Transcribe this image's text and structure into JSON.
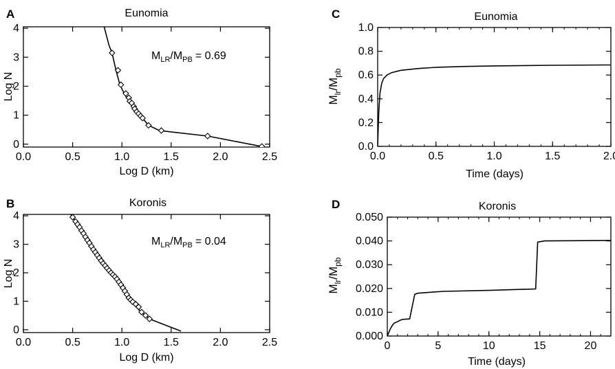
{
  "chart_data": [
    {
      "panel": "A",
      "type": "line",
      "title": "Eunomia",
      "xlabel": "Log D (km)",
      "ylabel": "Log N",
      "xlim": [
        0.0,
        2.5
      ],
      "ylim": [
        -0.1,
        4.05
      ],
      "xticks": [
        "0.0",
        "0.5",
        "1.0",
        "1.5",
        "2.0",
        "2.5"
      ],
      "yticks": [
        "0",
        "1",
        "2",
        "3",
        "4"
      ],
      "annotation": {
        "text_main": "M",
        "sub1": "LR",
        "sep": "/M",
        "sub2": "PB",
        "value": "=  0.69"
      },
      "line": [
        [
          0.82,
          4.05
        ],
        [
          0.87,
          3.4
        ],
        [
          0.9,
          3.15
        ],
        [
          0.94,
          2.55
        ],
        [
          0.98,
          2.05
        ],
        [
          1.03,
          1.7
        ],
        [
          1.08,
          1.45
        ],
        [
          1.13,
          1.22
        ],
        [
          1.18,
          1.02
        ],
        [
          1.27,
          0.65
        ],
        [
          1.38,
          0.47
        ],
        [
          1.87,
          0.28
        ],
        [
          2.42,
          -0.08
        ]
      ],
      "markers": [
        [
          0.9,
          3.15
        ],
        [
          0.96,
          2.55
        ],
        [
          0.99,
          2.05
        ],
        [
          1.04,
          1.75
        ],
        [
          1.07,
          1.6
        ],
        [
          1.08,
          1.48
        ],
        [
          1.1,
          1.42
        ],
        [
          1.12,
          1.3
        ],
        [
          1.13,
          1.22
        ],
        [
          1.15,
          1.12
        ],
        [
          1.17,
          1.05
        ],
        [
          1.19,
          0.97
        ],
        [
          1.21,
          0.9
        ],
        [
          1.27,
          0.65
        ],
        [
          1.4,
          0.47
        ],
        [
          1.87,
          0.28
        ],
        [
          2.42,
          -0.08
        ]
      ]
    },
    {
      "panel": "B",
      "type": "line",
      "title": "Koronis",
      "xlabel": "Log D (km)",
      "ylabel": "Log N",
      "xlim": [
        0.0,
        2.5
      ],
      "ylim": [
        -0.1,
        4.05
      ],
      "xticks": [
        "0.0",
        "0.5",
        "1.0",
        "1.5",
        "2.0",
        "2.5"
      ],
      "yticks": [
        "0",
        "1",
        "2",
        "3",
        "4"
      ],
      "annotation": {
        "text_main": "M",
        "sub1": "LR",
        "sep": "/M",
        "sub2": "PB",
        "value": "=  0.04"
      },
      "line": [
        [
          0.48,
          4.05
        ],
        [
          0.55,
          3.7
        ],
        [
          0.62,
          3.3
        ],
        [
          0.7,
          2.85
        ],
        [
          0.78,
          2.45
        ],
        [
          0.86,
          2.1
        ],
        [
          0.94,
          1.8
        ],
        [
          1.0,
          1.5
        ],
        [
          1.06,
          1.15
        ],
        [
          1.12,
          0.9
        ],
        [
          1.2,
          0.6
        ],
        [
          1.3,
          0.35
        ],
        [
          1.45,
          0.15
        ],
        [
          1.6,
          -0.05
        ]
      ],
      "markers": [
        [
          0.5,
          3.95
        ],
        [
          0.53,
          3.8
        ],
        [
          0.55,
          3.7
        ],
        [
          0.57,
          3.6
        ],
        [
          0.59,
          3.48
        ],
        [
          0.61,
          3.38
        ],
        [
          0.63,
          3.26
        ],
        [
          0.65,
          3.15
        ],
        [
          0.67,
          3.05
        ],
        [
          0.69,
          2.93
        ],
        [
          0.71,
          2.82
        ],
        [
          0.73,
          2.72
        ],
        [
          0.75,
          2.62
        ],
        [
          0.77,
          2.52
        ],
        [
          0.79,
          2.42
        ],
        [
          0.81,
          2.33
        ],
        [
          0.83,
          2.25
        ],
        [
          0.85,
          2.16
        ],
        [
          0.87,
          2.08
        ],
        [
          0.89,
          2.0
        ],
        [
          0.91,
          1.93
        ],
        [
          0.93,
          1.86
        ],
        [
          0.95,
          1.78
        ],
        [
          0.97,
          1.68
        ],
        [
          0.99,
          1.58
        ],
        [
          1.01,
          1.47
        ],
        [
          1.03,
          1.36
        ],
        [
          1.05,
          1.24
        ],
        [
          1.07,
          1.12
        ],
        [
          1.09,
          1.05
        ],
        [
          1.11,
          0.98
        ],
        [
          1.14,
          0.9
        ],
        [
          1.17,
          0.8
        ],
        [
          1.2,
          0.62
        ],
        [
          1.24,
          0.5
        ],
        [
          1.28,
          0.38
        ]
      ]
    },
    {
      "panel": "C",
      "type": "line",
      "title": "Eunomia",
      "xlabel": "Time (days)",
      "ylabel_main": "M",
      "ylabel_sub1": "lr",
      "ylabel_sep": "/M",
      "ylabel_sub2": "pb",
      "xlim": [
        0.0,
        2.0
      ],
      "ylim": [
        0.0,
        1.0
      ],
      "xticks": [
        "0.0",
        "0.5",
        "1.0",
        "1.5",
        "2.0"
      ],
      "yticks": [
        "0.0",
        "0.2",
        "0.4",
        "0.6",
        "0.8",
        "1.0"
      ],
      "line": [
        [
          0.0,
          0.0
        ],
        [
          0.005,
          0.15
        ],
        [
          0.01,
          0.3
        ],
        [
          0.02,
          0.45
        ],
        [
          0.035,
          0.53
        ],
        [
          0.05,
          0.57
        ],
        [
          0.08,
          0.6
        ],
        [
          0.12,
          0.62
        ],
        [
          0.2,
          0.64
        ],
        [
          0.35,
          0.655
        ],
        [
          0.5,
          0.665
        ],
        [
          0.75,
          0.672
        ],
        [
          1.0,
          0.677
        ],
        [
          1.5,
          0.682
        ],
        [
          2.0,
          0.685
        ]
      ]
    },
    {
      "panel": "D",
      "type": "line",
      "title": "Koronis",
      "xlabel": "Time (days)",
      "ylabel_main": "M",
      "ylabel_sub1": "lr",
      "ylabel_sep": "/M",
      "ylabel_sub2": "pb",
      "xlim": [
        0,
        22
      ],
      "ylim": [
        0.0,
        0.05
      ],
      "xticks": [
        "0",
        "5",
        "10",
        "15",
        "20"
      ],
      "yticks": [
        "0.000",
        "0.010",
        "0.020",
        "0.030",
        "0.040",
        "0.050"
      ],
      "line": [
        [
          0,
          0
        ],
        [
          0.1,
          0.001
        ],
        [
          0.3,
          0.003
        ],
        [
          0.5,
          0.0045
        ],
        [
          0.7,
          0.0055
        ],
        [
          1.0,
          0.006
        ],
        [
          1.2,
          0.0065
        ],
        [
          1.5,
          0.007
        ],
        [
          2.2,
          0.0072
        ],
        [
          2.7,
          0.0175
        ],
        [
          3.0,
          0.018
        ],
        [
          5.5,
          0.0188
        ],
        [
          10,
          0.0192
        ],
        [
          14.6,
          0.0198
        ],
        [
          14.8,
          0.0395
        ],
        [
          15.5,
          0.04
        ],
        [
          22,
          0.0402
        ]
      ]
    }
  ],
  "panel_labels": [
    "A",
    "B",
    "C",
    "D"
  ]
}
